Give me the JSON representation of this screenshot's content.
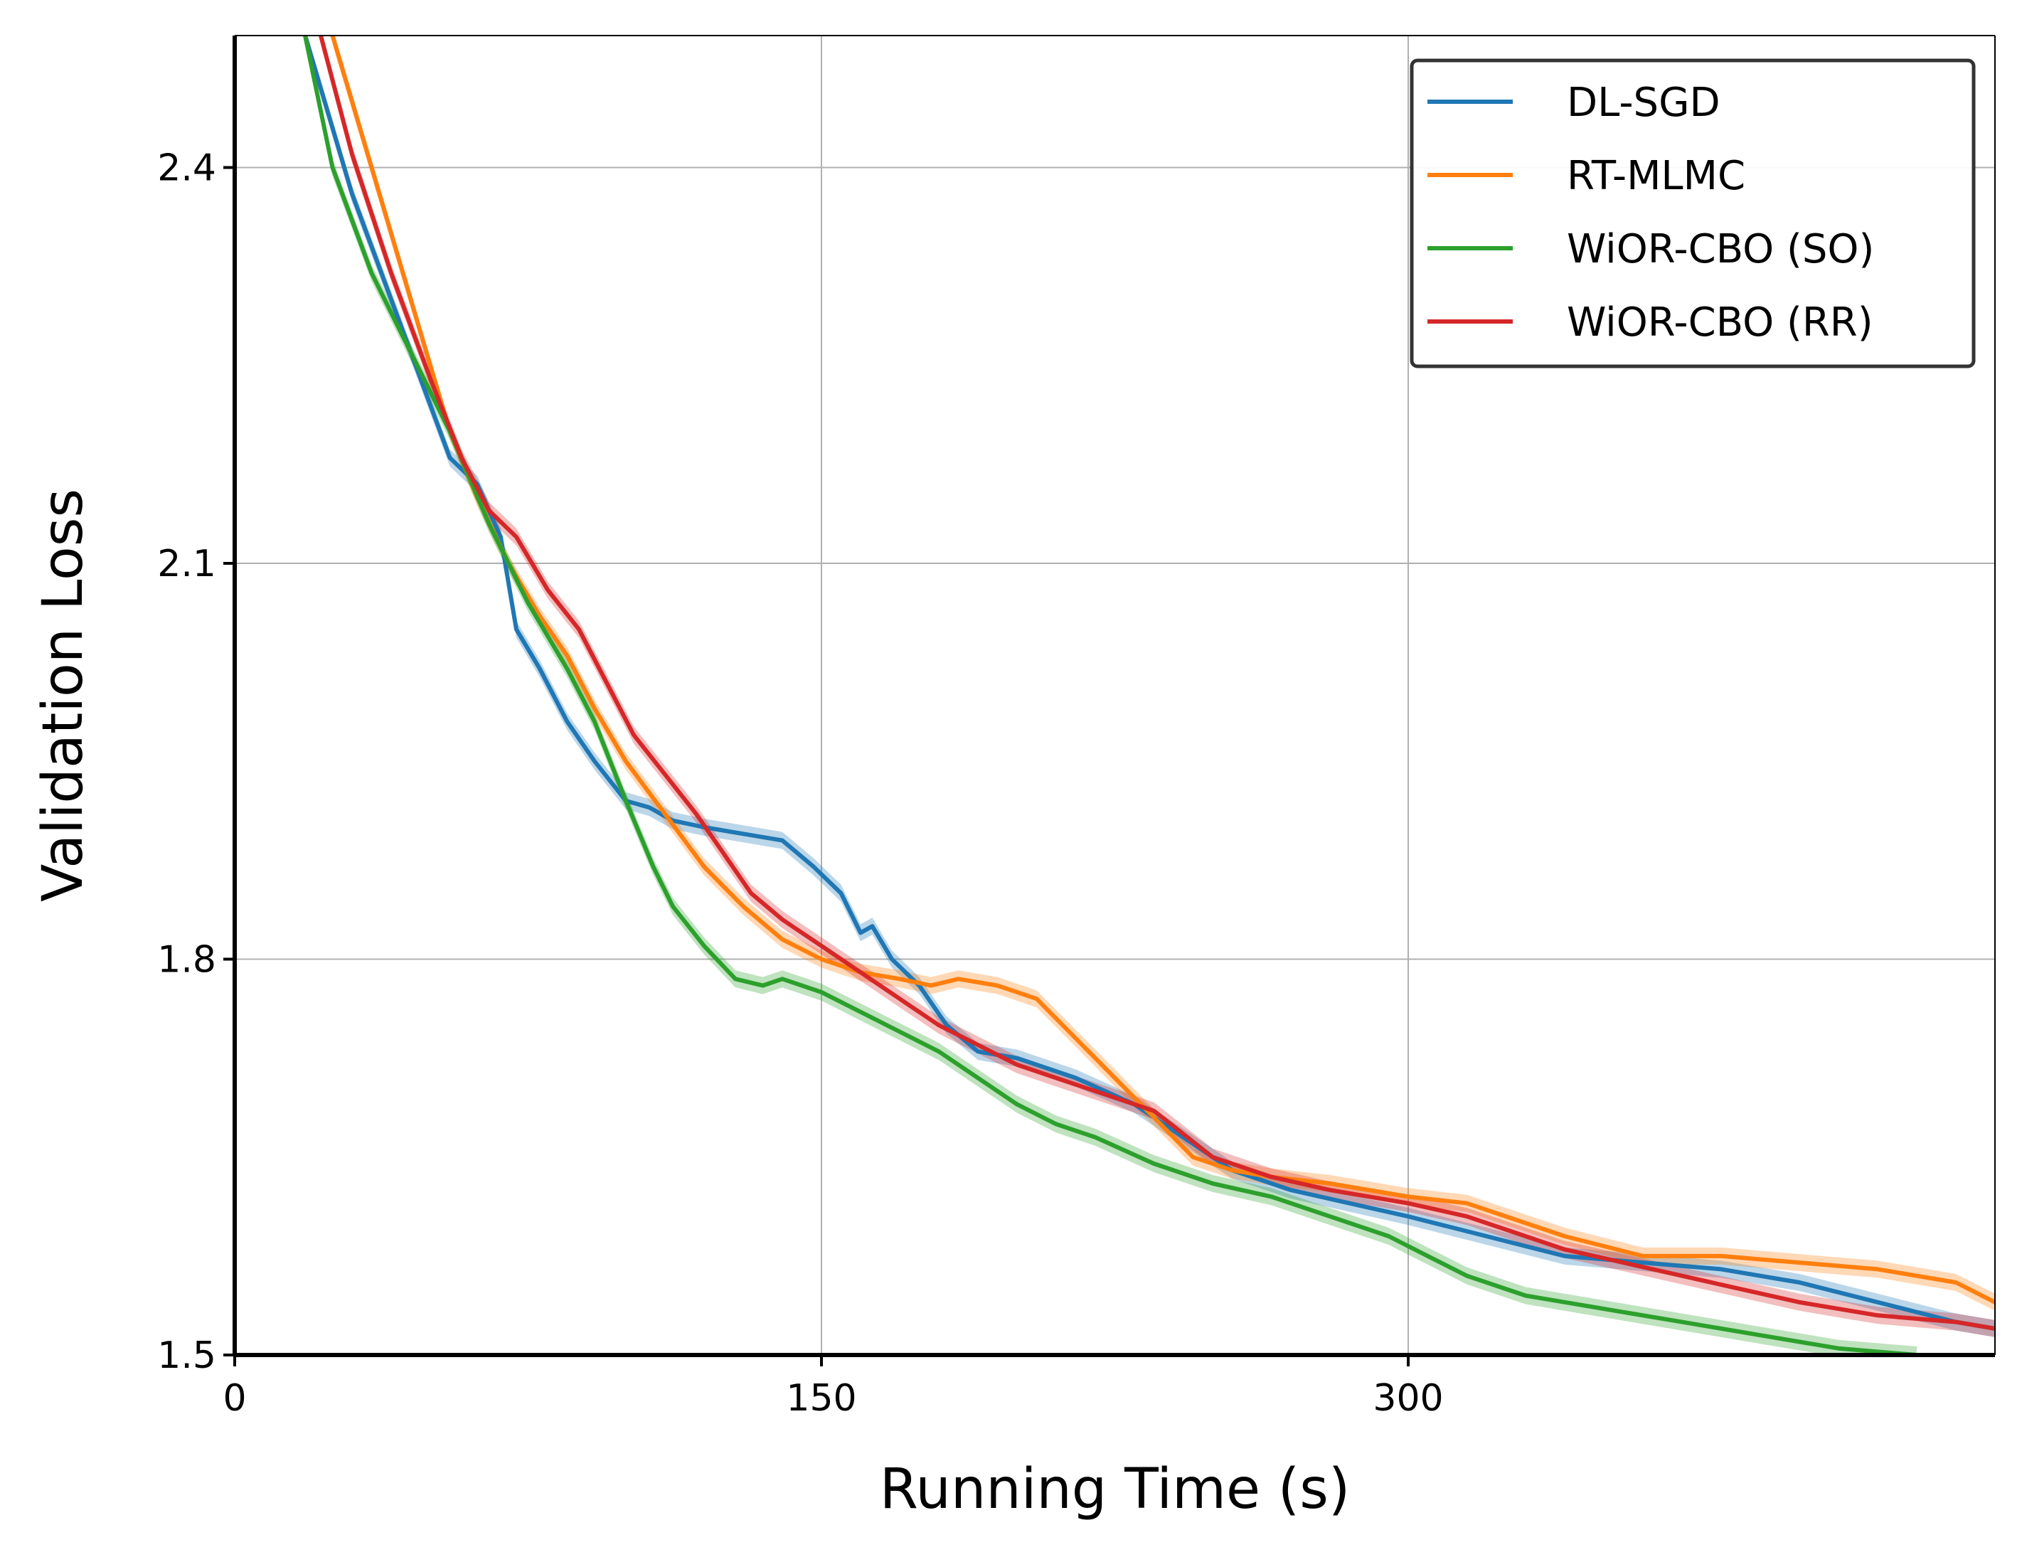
{
  "chart_data": {
    "type": "line",
    "xlabel": "Running Time (s)",
    "ylabel": "Validation Loss",
    "xlim": [
      0,
      450
    ],
    "ylim": [
      1.5,
      2.5
    ],
    "xticks": [
      0,
      150,
      300
    ],
    "xtick_labels": [
      "0",
      "150",
      "300"
    ],
    "yticks": [
      1.5,
      1.8,
      2.1,
      2.4
    ],
    "ytick_labels": [
      "1.5",
      "1.8",
      "2.1",
      "2.4"
    ],
    "grid": true,
    "legend_position": "top-right",
    "series": [
      {
        "name": "DL-SGD",
        "color": "#1f77b4",
        "x": [
          18,
          30,
          45,
          55,
          62,
          68,
          72,
          78,
          85,
          92,
          100,
          106,
          112,
          120,
          130,
          140,
          148,
          155,
          160,
          163,
          168,
          175,
          182,
          190,
          200,
          215,
          230,
          245,
          255,
          270,
          285,
          300,
          320,
          340,
          360,
          380,
          400,
          420,
          440,
          450
        ],
        "y": [
          2.5,
          2.38,
          2.26,
          2.18,
          2.16,
          2.12,
          2.05,
          2.02,
          1.98,
          1.95,
          1.92,
          1.915,
          1.905,
          1.9,
          1.895,
          1.89,
          1.87,
          1.85,
          1.82,
          1.825,
          1.8,
          1.78,
          1.75,
          1.73,
          1.725,
          1.71,
          1.69,
          1.66,
          1.64,
          1.625,
          1.615,
          1.605,
          1.59,
          1.575,
          1.57,
          1.565,
          1.555,
          1.54,
          1.525,
          1.52
        ]
      },
      {
        "name": "RT-MLMC",
        "color": "#ff7f0e",
        "x": [
          25,
          35,
          45,
          55,
          62,
          70,
          78,
          85,
          92,
          100,
          110,
          120,
          130,
          140,
          150,
          160,
          170,
          178,
          185,
          195,
          205,
          215,
          225,
          235,
          245,
          255,
          265,
          280,
          300,
          315,
          330,
          340,
          360,
          380,
          400,
          420,
          440,
          450
        ],
        "y": [
          2.5,
          2.4,
          2.3,
          2.2,
          2.15,
          2.1,
          2.06,
          2.03,
          1.99,
          1.95,
          1.91,
          1.87,
          1.84,
          1.815,
          1.8,
          1.79,
          1.785,
          1.78,
          1.785,
          1.78,
          1.77,
          1.74,
          1.71,
          1.68,
          1.65,
          1.64,
          1.635,
          1.63,
          1.62,
          1.615,
          1.6,
          1.59,
          1.575,
          1.575,
          1.57,
          1.565,
          1.555,
          1.54
        ]
      },
      {
        "name": "WiOR-CBO (SO)",
        "color": "#2ca02c",
        "x": [
          18,
          25,
          35,
          45,
          55,
          65,
          75,
          85,
          92,
          100,
          107,
          112,
          120,
          128,
          135,
          140,
          150,
          160,
          170,
          180,
          190,
          200,
          210,
          220,
          235,
          250,
          265,
          280,
          295,
          305,
          315,
          330,
          350,
          370,
          390,
          410,
          430
        ],
        "y": [
          2.5,
          2.4,
          2.32,
          2.26,
          2.2,
          2.13,
          2.07,
          2.02,
          1.98,
          1.92,
          1.87,
          1.84,
          1.81,
          1.785,
          1.78,
          1.785,
          1.775,
          1.76,
          1.745,
          1.73,
          1.71,
          1.69,
          1.675,
          1.665,
          1.645,
          1.63,
          1.62,
          1.605,
          1.59,
          1.575,
          1.56,
          1.545,
          1.535,
          1.525,
          1.515,
          1.505,
          1.5
        ]
      },
      {
        "name": "WiOR-CBO (RR)",
        "color": "#d62728",
        "x": [
          22,
          30,
          40,
          50,
          58,
          65,
          72,
          80,
          88,
          95,
          102,
          110,
          118,
          125,
          132,
          140,
          150,
          160,
          170,
          180,
          190,
          200,
          210,
          220,
          235,
          250,
          265,
          280,
          300,
          315,
          330,
          340,
          355,
          370,
          385,
          400,
          410,
          420,
          440,
          450
        ],
        "y": [
          2.5,
          2.41,
          2.32,
          2.24,
          2.18,
          2.14,
          2.12,
          2.08,
          2.05,
          2.01,
          1.97,
          1.94,
          1.91,
          1.88,
          1.85,
          1.83,
          1.81,
          1.79,
          1.77,
          1.75,
          1.735,
          1.72,
          1.71,
          1.7,
          1.685,
          1.65,
          1.635,
          1.625,
          1.615,
          1.605,
          1.59,
          1.58,
          1.57,
          1.56,
          1.55,
          1.54,
          1.535,
          1.53,
          1.525,
          1.52
        ]
      }
    ]
  }
}
